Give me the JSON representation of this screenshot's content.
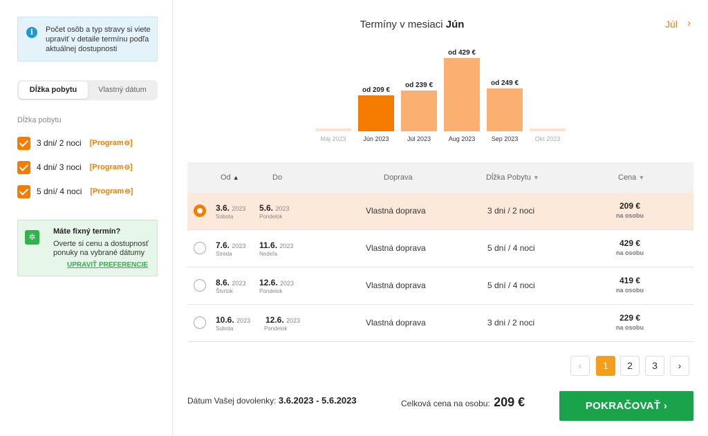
{
  "info": {
    "icon": "info-icon",
    "text": "Počet osôb a typ stravy si viete upraviť v detaile termínu podľa aktuálnej dostupnosti"
  },
  "segment": {
    "active": "Dĺžka pobytu",
    "inactive": "Vlastný dátum"
  },
  "filter": {
    "label": "Dĺžka pobytu",
    "options": [
      {
        "label": "3 dni/ 2 noci",
        "link": "[Program",
        "checked": true
      },
      {
        "label": "4 dni/ 3 noci",
        "link": "[Program",
        "checked": true
      },
      {
        "label": "5 dní/ 4 noci",
        "link": "[Program",
        "checked": true
      }
    ],
    "link_close": "]"
  },
  "fixed": {
    "title": "Máte fixný termín?",
    "text": "Overte si cenu a dostupnosť ponuky na vybrané dátumy",
    "link": "UPRAVIŤ PREFERENCIE"
  },
  "calendar": {
    "title_prefix": "Termíny v mesiaci",
    "month": "Jún",
    "next": "Júl"
  },
  "chart_data": {
    "type": "bar",
    "categories": [
      "Máj 2023",
      "Jún 2023",
      "Júl 2023",
      "Aug 2023",
      "Sep 2023",
      "Okt 2023"
    ],
    "values": [
      null,
      209,
      239,
      429,
      249,
      null
    ],
    "labels": [
      "",
      "od 209 €",
      "od 239 €",
      "od 429 €",
      "od 249 €",
      ""
    ],
    "selected": "Jún 2023",
    "colors": {
      "selected": "#f57c00",
      "available": "#fbb072",
      "unavailable": "#fde3cf"
    }
  },
  "table": {
    "headers": {
      "od": "Od",
      "do": "Do",
      "doprava": "Doprava",
      "dlzka": "Dĺžka Pobytu",
      "cena": "Cena"
    },
    "rows": [
      {
        "from": "3.6.",
        "from_year": "2023",
        "from_day": "Sobota",
        "to": "5.6.",
        "to_year": "2023",
        "to_day": "Pondelok",
        "transport": "Vlastná doprava",
        "stay": "3 dni / 2 noci",
        "price": "209 €",
        "per": "na osobu",
        "selected": true
      },
      {
        "from": "7.6.",
        "from_year": "2023",
        "from_day": "Streda",
        "to": "11.6.",
        "to_year": "2023",
        "to_day": "Nedeľa",
        "transport": "Vlastná doprava",
        "stay": "5 dní / 4 noci",
        "price": "429 €",
        "per": "na osobu",
        "selected": false
      },
      {
        "from": "8.6.",
        "from_year": "2023",
        "from_day": "Štvrtok",
        "to": "12.6.",
        "to_year": "2023",
        "to_day": "Pondelok",
        "transport": "Vlastná doprava",
        "stay": "5 dní / 4 noci",
        "price": "419 €",
        "per": "na osobu",
        "selected": false
      },
      {
        "from": "10.6.",
        "from_year": "2023",
        "from_day": "Sobota",
        "to": "12.6.",
        "to_year": "2023",
        "to_day": "Pondelok",
        "transport": "Vlastná doprava",
        "stay": "3 dni / 2 noci",
        "price": "229 €",
        "per": "na osobu",
        "selected": false
      }
    ]
  },
  "pagination": {
    "prev": "‹",
    "pages": [
      "1",
      "2",
      "3"
    ],
    "active": "1",
    "next": "›"
  },
  "footer": {
    "date_label": "Dátum Vašej dovolenky:",
    "date_value": "3.6.2023 - 5.6.2023",
    "total_label": "Celková cena na osobu:",
    "total_value": "209 €",
    "cta": "POKRAČOVAŤ"
  }
}
